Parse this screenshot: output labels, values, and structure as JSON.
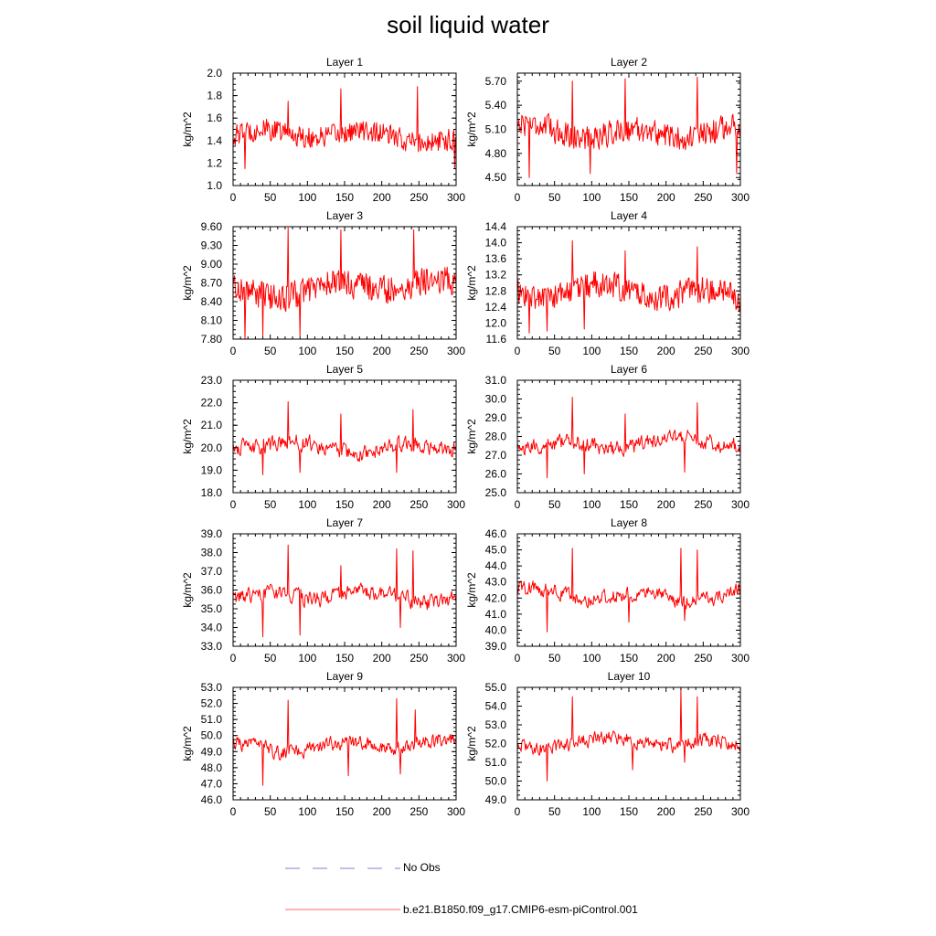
{
  "title": "soil liquid water",
  "colors": {
    "model": "#ff0000",
    "obs": "#7f7fd0"
  },
  "legend": {
    "obs_label": "No Obs",
    "model_label": "b.e21.B1850.f09_g17.CMIP6-esm-piControl.001"
  },
  "chart_data": [
    {
      "type": "line",
      "title": "Layer 1",
      "ylabel": "kg/m^2",
      "xlim": [
        0,
        300
      ],
      "xticks": [
        0,
        50,
        100,
        150,
        200,
        250,
        300
      ],
      "ylim": [
        1.0,
        2.0
      ],
      "yticks": [
        "1.0",
        "1.2",
        "1.4",
        "1.6",
        "1.8",
        "2.0"
      ],
      "y_center": 1.44,
      "y_noise": 0.11,
      "peaks": [
        [
          74,
          1.75
        ],
        [
          145,
          1.86
        ],
        [
          248,
          1.88
        ]
      ],
      "troughs": [
        [
          16,
          1.15
        ],
        [
          298,
          1.15
        ]
      ],
      "series": [
        {
          "name": "b.e21.B1850.f09_g17.CMIP6-esm-piControl.001",
          "note": "301 annual means, values approximated from figure"
        }
      ]
    },
    {
      "type": "line",
      "title": "Layer 2",
      "ylabel": "kg/m^2",
      "xlim": [
        0,
        300
      ],
      "xticks": [
        0,
        50,
        100,
        150,
        200,
        250,
        300
      ],
      "ylim": [
        4.4,
        5.8
      ],
      "yticks": [
        "4.50",
        "4.80",
        "5.10",
        "5.40",
        "5.70"
      ],
      "y_center": 5.08,
      "y_noise": 0.18,
      "peaks": [
        [
          74,
          5.7
        ],
        [
          145,
          5.73
        ],
        [
          242,
          5.75
        ]
      ],
      "troughs": [
        [
          16,
          4.5
        ],
        [
          98,
          4.55
        ],
        [
          295,
          4.55
        ]
      ],
      "series": [
        {
          "name": "b.e21.B1850.f09_g17.CMIP6-esm-piControl.001"
        }
      ]
    },
    {
      "type": "line",
      "title": "Layer 3",
      "ylabel": "kg/m^2",
      "xlim": [
        0,
        300
      ],
      "xticks": [
        0,
        50,
        100,
        150,
        200,
        250,
        300
      ],
      "ylim": [
        7.8,
        9.6
      ],
      "yticks": [
        "7.80",
        "8.10",
        "8.40",
        "8.70",
        "9.00",
        "9.30",
        "9.60"
      ],
      "y_center": 8.62,
      "y_noise": 0.26,
      "peaks": [
        [
          74,
          9.58
        ],
        [
          145,
          9.55
        ],
        [
          243,
          9.55
        ]
      ],
      "troughs": [
        [
          16,
          7.8
        ],
        [
          40,
          7.85
        ],
        [
          90,
          7.85
        ]
      ],
      "series": [
        {
          "name": "b.e21.B1850.f09_g17.CMIP6-esm-piControl.001"
        }
      ]
    },
    {
      "type": "line",
      "title": "Layer 4",
      "ylabel": "kg/m^2",
      "xlim": [
        0,
        300
      ],
      "xticks": [
        0,
        50,
        100,
        150,
        200,
        250,
        300
      ],
      "ylim": [
        11.6,
        14.4
      ],
      "yticks": [
        "11.6",
        "12.0",
        "12.4",
        "12.8",
        "13.2",
        "13.6",
        "14.0",
        "14.4"
      ],
      "y_center": 12.75,
      "y_noise": 0.38,
      "peaks": [
        [
          74,
          14.05
        ],
        [
          145,
          13.8
        ],
        [
          242,
          13.9
        ]
      ],
      "troughs": [
        [
          16,
          11.75
        ],
        [
          40,
          11.8
        ],
        [
          90,
          11.85
        ]
      ],
      "series": [
        {
          "name": "b.e21.B1850.f09_g17.CMIP6-esm-piControl.001"
        }
      ]
    },
    {
      "type": "line",
      "title": "Layer 5",
      "ylabel": "kg/m^2",
      "xlim": [
        0,
        300
      ],
      "xticks": [
        0,
        50,
        100,
        150,
        200,
        250,
        300
      ],
      "ylim": [
        18.0,
        23.0
      ],
      "yticks": [
        "18.0",
        "19.0",
        "20.0",
        "21.0",
        "22.0",
        "23.0"
      ],
      "y_center": 20.05,
      "y_noise": 0.55,
      "peaks": [
        [
          74,
          22.05
        ],
        [
          145,
          21.5
        ],
        [
          242,
          21.7
        ]
      ],
      "troughs": [
        [
          40,
          18.8
        ],
        [
          90,
          18.9
        ],
        [
          220,
          18.9
        ]
      ],
      "series": [
        {
          "name": "b.e21.B1850.f09_g17.CMIP6-esm-piControl.001"
        }
      ]
    },
    {
      "type": "line",
      "title": "Layer 6",
      "ylabel": "kg/m^2",
      "xlim": [
        0,
        300
      ],
      "xticks": [
        0,
        50,
        100,
        150,
        200,
        250,
        300
      ],
      "ylim": [
        25.0,
        31.0
      ],
      "yticks": [
        "25.0",
        "26.0",
        "27.0",
        "28.0",
        "29.0",
        "30.0",
        "31.0"
      ],
      "y_center": 27.6,
      "y_noise": 0.65,
      "peaks": [
        [
          74,
          30.1
        ],
        [
          145,
          29.2
        ],
        [
          242,
          29.8
        ]
      ],
      "troughs": [
        [
          40,
          25.8
        ],
        [
          90,
          26.0
        ],
        [
          225,
          26.1
        ]
      ],
      "series": [
        {
          "name": "b.e21.B1850.f09_g17.CMIP6-esm-piControl.001"
        }
      ]
    },
    {
      "type": "line",
      "title": "Layer 7",
      "ylabel": "kg/m^2",
      "xlim": [
        0,
        300
      ],
      "xticks": [
        0,
        50,
        100,
        150,
        200,
        250,
        300
      ],
      "ylim": [
        33.0,
        39.0
      ],
      "yticks": [
        "33.0",
        "34.0",
        "35.0",
        "36.0",
        "37.0",
        "38.0",
        "39.0"
      ],
      "y_center": 35.6,
      "y_noise": 0.65,
      "peaks": [
        [
          74,
          38.4
        ],
        [
          145,
          37.3
        ],
        [
          220,
          38.2
        ],
        [
          242,
          38.1
        ]
      ],
      "troughs": [
        [
          40,
          33.5
        ],
        [
          90,
          33.6
        ],
        [
          225,
          34.0
        ]
      ],
      "series": [
        {
          "name": "b.e21.B1850.f09_g17.CMIP6-esm-piControl.001"
        }
      ]
    },
    {
      "type": "line",
      "title": "Layer 8",
      "ylabel": "kg/m^2",
      "xlim": [
        0,
        300
      ],
      "xticks": [
        0,
        50,
        100,
        150,
        200,
        250,
        300
      ],
      "ylim": [
        39.0,
        46.0
      ],
      "yticks": [
        "39.0",
        "40.0",
        "41.0",
        "42.0",
        "43.0",
        "44.0",
        "45.0",
        "46.0"
      ],
      "y_center": 42.2,
      "y_noise": 0.7,
      "peaks": [
        [
          74,
          45.1
        ],
        [
          220,
          45.1
        ],
        [
          242,
          45.0
        ]
      ],
      "troughs": [
        [
          40,
          39.9
        ],
        [
          150,
          40.5
        ],
        [
          225,
          40.6
        ]
      ],
      "series": [
        {
          "name": "b.e21.B1850.f09_g17.CMIP6-esm-piControl.001"
        }
      ]
    },
    {
      "type": "line",
      "title": "Layer 9",
      "ylabel": "kg/m^2",
      "xlim": [
        0,
        300
      ],
      "xticks": [
        0,
        50,
        100,
        150,
        200,
        250,
        300
      ],
      "ylim": [
        46.0,
        53.0
      ],
      "yticks": [
        "46.0",
        "47.0",
        "48.0",
        "49.0",
        "50.0",
        "51.0",
        "52.0",
        "53.0"
      ],
      "y_center": 49.4,
      "y_noise": 0.7,
      "peaks": [
        [
          74,
          52.2
        ],
        [
          220,
          52.3
        ],
        [
          245,
          51.6
        ]
      ],
      "troughs": [
        [
          40,
          46.9
        ],
        [
          155,
          47.5
        ],
        [
          225,
          47.6
        ]
      ],
      "series": [
        {
          "name": "b.e21.B1850.f09_g17.CMIP6-esm-piControl.001"
        }
      ]
    },
    {
      "type": "line",
      "title": "Layer 10",
      "ylabel": "kg/m^2",
      "xlim": [
        0,
        300
      ],
      "xticks": [
        0,
        50,
        100,
        150,
        200,
        250,
        300
      ],
      "ylim": [
        49.0,
        55.0
      ],
      "yticks": [
        "49.0",
        "50.0",
        "51.0",
        "52.0",
        "53.0",
        "54.0",
        "55.0"
      ],
      "y_center": 52.0,
      "y_noise": 0.6,
      "peaks": [
        [
          74,
          54.5
        ],
        [
          220,
          54.9
        ],
        [
          242,
          54.5
        ]
      ],
      "troughs": [
        [
          40,
          50.0
        ],
        [
          155,
          50.6
        ],
        [
          225,
          51.0
        ]
      ],
      "series": [
        {
          "name": "b.e21.B1850.f09_g17.CMIP6-esm-piControl.001"
        }
      ]
    }
  ]
}
